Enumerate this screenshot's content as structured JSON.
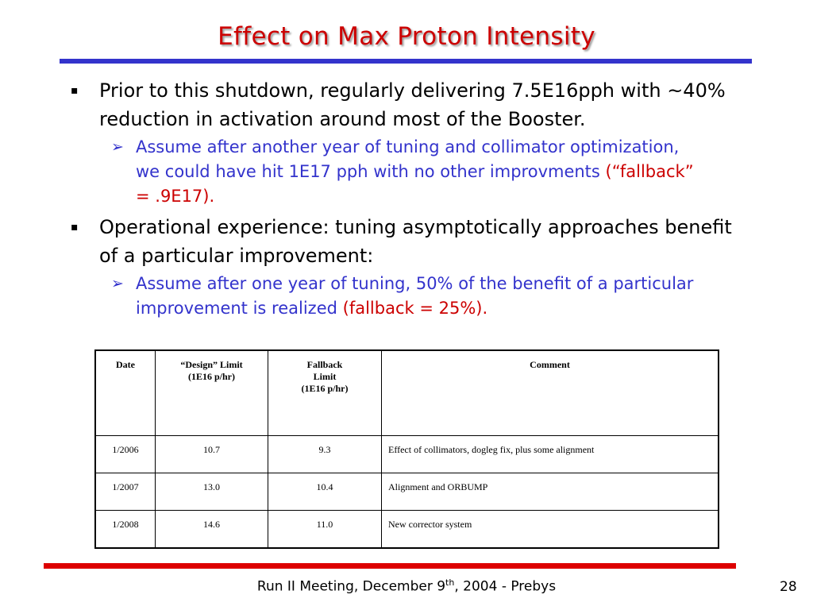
{
  "slide": {
    "title": "Effect on Max Proton Intensity",
    "bullets": [
      {
        "marker": "▪",
        "text": "Prior to this shutdown, regularly delivering 7.5E16pph with ~40% reduction in activation around most of the Booster.",
        "sub": {
          "marker": "➢",
          "text": "Assume after another year of tuning and collimator optimization, we could have hit 1E17 pph with no other improvments ",
          "highlight": "(“fallback” = .9E17)."
        }
      },
      {
        "marker": "▪",
        "text": "Operational experience: tuning asymptotically approaches benefit of a particular improvement:",
        "sub": {
          "marker": "➢",
          "text": "Assume after one year of tuning, 50% of the benefit of a particular improvement is realized ",
          "highlight": "(fallback = 25%)."
        }
      }
    ]
  },
  "table": {
    "headers": [
      [
        "Date"
      ],
      [
        "“Design” Limit",
        "(1E16 p/hr)"
      ],
      [
        "Fallback",
        "Limit",
        "(1E16 p/hr)"
      ],
      [
        "Comment"
      ]
    ],
    "rows": [
      [
        "1/2006",
        "10.7",
        "9.3",
        "Effect of collimators, dogleg fix, plus some alignment"
      ],
      [
        "1/2007",
        "13.0",
        "10.4",
        "Alignment and ORBUMP"
      ],
      [
        "1/2008",
        "14.6",
        "11.0",
        "New corrector system"
      ]
    ]
  },
  "footer": {
    "text_before": "Run II Meeting, December 9",
    "superscript": "th",
    "text_after": ", 2004  - Prebys",
    "page_number": "28"
  },
  "colors": {
    "title": "#cc0000",
    "top_rule": "#3333cc",
    "bottom_rule": "#dd0000",
    "sub_bullet_text": "#3333cc",
    "highlight": "#cc0000"
  }
}
